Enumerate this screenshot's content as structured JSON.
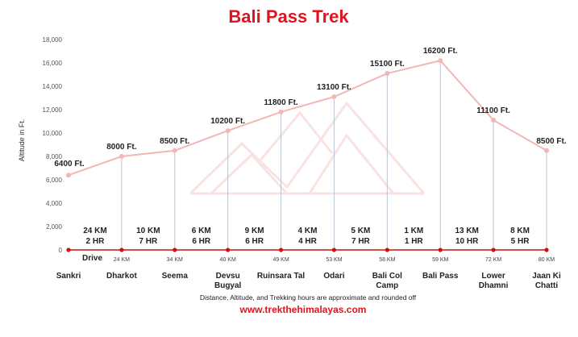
{
  "chart_data": {
    "type": "line",
    "title": "Bali Pass Trek",
    "ylabel": "Altitude in Ft.",
    "ylim": [
      0,
      18000
    ],
    "yticks": [
      0,
      2000,
      4000,
      6000,
      8000,
      10000,
      12000,
      14000,
      16000,
      18000
    ],
    "ytick_labels": [
      "0",
      "2,000",
      "4,000",
      "6,000",
      "8,000",
      "10,000",
      "12,000",
      "14,000",
      "16,000",
      "18,000"
    ],
    "grid": false,
    "points": [
      {
        "place": "Sankri",
        "altitude": 6400,
        "alt_label": "6400 Ft.",
        "km_label": ""
      },
      {
        "place": "Dharkot",
        "altitude": 8000,
        "alt_label": "8000 Ft.",
        "km_label": "24 KM"
      },
      {
        "place": "Seema",
        "altitude": 8500,
        "alt_label": "8500 Ft.",
        "km_label": "34 KM"
      },
      {
        "place": "Devsu\nBugyal",
        "altitude": 10200,
        "alt_label": "10200 Ft.",
        "km_label": "40 KM"
      },
      {
        "place": "Ruinsara Tal",
        "altitude": 11800,
        "alt_label": "11800 Ft.",
        "km_label": "49 KM"
      },
      {
        "place": "Odari",
        "altitude": 13100,
        "alt_label": "13100 Ft.",
        "km_label": "53 KM"
      },
      {
        "place": "Bali Col\nCamp",
        "altitude": 15100,
        "alt_label": "15100 Ft.",
        "km_label": "58 KM"
      },
      {
        "place": "Bali Pass",
        "altitude": 16200,
        "alt_label": "16200 Ft.",
        "km_label": "59 KM"
      },
      {
        "place": "Lower\nDhamni",
        "altitude": 11100,
        "alt_label": "11100 Ft.",
        "km_label": "72 KM"
      },
      {
        "place": "Jaan Ki\nChatti",
        "altitude": 8500,
        "alt_label": "8500 Ft.",
        "km_label": "80 KM"
      }
    ],
    "segments": [
      {
        "distance": "24 KM",
        "hours": "2 HR"
      },
      {
        "distance": "10 KM",
        "hours": "7 HR"
      },
      {
        "distance": "6 KM",
        "hours": "6 HR"
      },
      {
        "distance": "9 KM",
        "hours": "6 HR"
      },
      {
        "distance": "4 KM",
        "hours": "4 HR"
      },
      {
        "distance": "5 KM",
        "hours": "7 HR"
      },
      {
        "distance": "1 KM",
        "hours": "1 HR"
      },
      {
        "distance": "13 KM",
        "hours": "10 HR"
      },
      {
        "distance": "8 KM",
        "hours": "5 HR"
      }
    ],
    "drive_label": "Drive",
    "line_color": "#f2b6b6",
    "marker_color": "#f2b6b6",
    "baseline_color": "#cc1111"
  },
  "footnote": "Distance, Altitude, and Trekking hours are approximate and rounded off",
  "website": "www.trekthehimalayas.com"
}
